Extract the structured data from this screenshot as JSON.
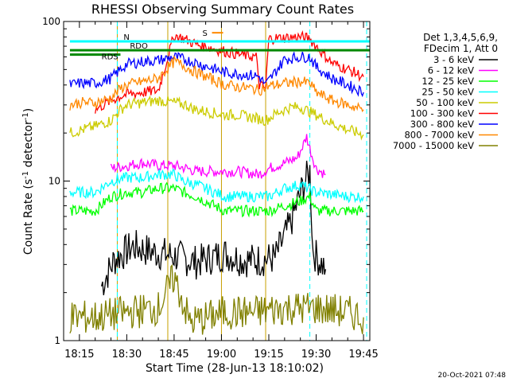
{
  "chart_data": {
    "type": "line",
    "title": "RHESSI Observing Summary Count Rates",
    "xlabel": "Start Time (28-Jun-13 18:10:02)",
    "ylabel": "Count Rate (s",
    "ylabel_sup": "-1",
    "ylabel_tail": " detector",
    "ylabel_end": ")",
    "y_scale": "log",
    "ylim": [
      1,
      100
    ],
    "y_ticks": [
      "1",
      "10",
      "100"
    ],
    "xlim": [
      "18:10",
      "19:47"
    ],
    "x_ticks": [
      "18:15",
      "18:30",
      "18:45",
      "19:00",
      "19:15",
      "19:30",
      "19:45"
    ],
    "grid": false,
    "legend": {
      "placement": "right",
      "header": [
        "Det 1,3,4,5,6,9,",
        "FDecim 1, Att 0"
      ],
      "entries": [
        {
          "label": "3 - 6 keV",
          "color": "#000000"
        },
        {
          "label": "6 - 12 keV",
          "color": "#ff00ff"
        },
        {
          "label": "12 - 25 keV",
          "color": "#00ff00"
        },
        {
          "label": "25 - 50 keV",
          "color": "#00ffff"
        },
        {
          "label": "50 - 100 keV",
          "color": "#cccc00"
        },
        {
          "label": "100 - 300 keV",
          "color": "#ff0000"
        },
        {
          "label": "300 - 800 keV",
          "color": "#0000ff"
        },
        {
          "label": "800 - 7000 keV",
          "color": "#ff8800"
        },
        {
          "label": "7000 - 15000 keV",
          "color": "#808000"
        }
      ]
    },
    "series": [
      {
        "name": "3 - 6 keV",
        "color": "#000000",
        "points": [
          [
            "18:22",
            2.2
          ],
          [
            "18:26",
            3.2
          ],
          [
            "18:32",
            3.9
          ],
          [
            "18:38",
            3.6
          ],
          [
            "18:45",
            3.4
          ],
          [
            "18:52",
            3.1
          ],
          [
            "19:01",
            3.5
          ],
          [
            "19:07",
            3.2
          ],
          [
            "19:12",
            3.2
          ],
          [
            "19:17",
            3.3
          ],
          [
            "19:22",
            5.5
          ],
          [
            "19:26",
            9.5
          ],
          [
            "19:28",
            11.5
          ],
          [
            "19:29",
            3.6
          ],
          [
            "19:33",
            2.8
          ]
        ]
      },
      {
        "name": "6 - 12 keV",
        "color": "#ff00ff",
        "points": [
          [
            "18:25",
            12
          ],
          [
            "18:30",
            12.5
          ],
          [
            "18:35",
            13
          ],
          [
            "18:40",
            12.5
          ],
          [
            "18:45",
            12.5
          ],
          [
            "18:49",
            12
          ],
          [
            "18:52",
            11.5
          ],
          [
            "19:01",
            11.5
          ],
          [
            "19:05",
            11.5
          ],
          [
            "19:12",
            11
          ],
          [
            "19:15",
            12
          ],
          [
            "19:20",
            13
          ],
          [
            "19:24",
            14
          ],
          [
            "19:26",
            17
          ],
          [
            "19:27",
            19
          ],
          [
            "19:28",
            16
          ],
          [
            "19:30",
            12
          ],
          [
            "19:33",
            11
          ]
        ]
      },
      {
        "name": "12 - 25 keV",
        "color": "#00ff00",
        "points": [
          [
            "18:12",
            6.5
          ],
          [
            "18:15",
            6.5
          ],
          [
            "18:20",
            6.5
          ],
          [
            "18:25",
            8
          ],
          [
            "18:30",
            8.5
          ],
          [
            "18:35",
            8.5
          ],
          [
            "18:40",
            9
          ],
          [
            "18:45",
            9
          ],
          [
            "18:48",
            8.5
          ],
          [
            "18:52",
            8
          ],
          [
            "19:01",
            6.5
          ],
          [
            "19:05",
            6.5
          ],
          [
            "19:10",
            6.5
          ],
          [
            "19:15",
            6.5
          ],
          [
            "19:20",
            7
          ],
          [
            "19:25",
            7.5
          ],
          [
            "19:28",
            8
          ],
          [
            "19:30",
            6.5
          ],
          [
            "19:40",
            6.5
          ],
          [
            "19:45",
            6.5
          ]
        ]
      },
      {
        "name": "25 - 50 keV",
        "color": "#00ffff",
        "points": [
          [
            "18:12",
            8.5
          ],
          [
            "18:15",
            8.5
          ],
          [
            "18:20",
            8.5
          ],
          [
            "18:25",
            10
          ],
          [
            "18:30",
            10.5
          ],
          [
            "18:35",
            10.5
          ],
          [
            "18:40",
            11
          ],
          [
            "18:45",
            11
          ],
          [
            "18:48",
            10
          ],
          [
            "18:52",
            9.5
          ],
          [
            "19:01",
            8
          ],
          [
            "19:05",
            8
          ],
          [
            "19:10",
            8
          ],
          [
            "19:15",
            8
          ],
          [
            "19:20",
            9
          ],
          [
            "19:25",
            9.5
          ],
          [
            "19:30",
            8.5
          ],
          [
            "19:40",
            8
          ],
          [
            "19:45",
            8
          ]
        ]
      },
      {
        "name": "50 - 100 keV",
        "color": "#cccc00",
        "points": [
          [
            "18:12",
            20
          ],
          [
            "18:16",
            21
          ],
          [
            "18:20",
            22
          ],
          [
            "18:25",
            24
          ],
          [
            "18:28",
            28
          ],
          [
            "18:30",
            30
          ],
          [
            "18:35",
            31
          ],
          [
            "18:40",
            32
          ],
          [
            "18:45",
            31
          ],
          [
            "18:49",
            30
          ],
          [
            "18:50",
            29
          ],
          [
            "18:52",
            28
          ],
          [
            "19:01",
            26
          ],
          [
            "19:05",
            26
          ],
          [
            "19:10",
            25
          ],
          [
            "19:14",
            24
          ],
          [
            "19:18",
            27
          ],
          [
            "19:22",
            29
          ],
          [
            "19:25",
            29
          ],
          [
            "19:30",
            26
          ],
          [
            "19:35",
            23
          ],
          [
            "19:40",
            21
          ],
          [
            "19:45",
            19.5
          ]
        ]
      },
      {
        "name": "100 - 300 keV",
        "color": "#ff0000",
        "points": [
          [
            "18:20",
            28
          ],
          [
            "18:25",
            32
          ],
          [
            "18:28",
            34
          ],
          [
            "18:30",
            35
          ],
          [
            "18:35",
            36
          ],
          [
            "18:40",
            37
          ],
          [
            "18:45",
            82
          ],
          [
            "18:48",
            78
          ],
          [
            "18:52",
            72
          ],
          [
            "18:57",
            68
          ],
          [
            "19:01",
            65
          ],
          [
            "19:06",
            62
          ],
          [
            "19:11",
            60
          ],
          [
            "19:12",
            40
          ],
          [
            "19:14",
            38
          ],
          [
            "19:15",
            78
          ],
          [
            "19:20",
            79
          ],
          [
            "19:25",
            80
          ],
          [
            "19:28",
            78
          ],
          [
            "19:30",
            70
          ],
          [
            "19:35",
            55
          ],
          [
            "19:40",
            50
          ],
          [
            "19:45",
            45
          ]
        ]
      },
      {
        "name": "300 - 800 keV",
        "color": "#0000ff",
        "points": [
          [
            "18:12",
            40
          ],
          [
            "18:15",
            41
          ],
          [
            "18:20",
            41
          ],
          [
            "18:25",
            44
          ],
          [
            "18:28",
            50
          ],
          [
            "18:30",
            54
          ],
          [
            "18:35",
            56
          ],
          [
            "18:40",
            57
          ],
          [
            "18:45",
            60
          ],
          [
            "18:48",
            58
          ],
          [
            "18:52",
            55
          ],
          [
            "19:01",
            48
          ],
          [
            "19:05",
            47
          ],
          [
            "19:10",
            46
          ],
          [
            "19:12",
            45
          ],
          [
            "19:14",
            40
          ],
          [
            "19:20",
            58
          ],
          [
            "19:25",
            60
          ],
          [
            "19:28",
            60
          ],
          [
            "19:30",
            52
          ],
          [
            "19:35",
            44
          ],
          [
            "19:40",
            40
          ],
          [
            "19:45",
            36
          ]
        ]
      },
      {
        "name": "800 - 7000 keV",
        "color": "#ff8800",
        "points": [
          [
            "18:12",
            30
          ],
          [
            "18:15",
            31
          ],
          [
            "18:20",
            31
          ],
          [
            "18:25",
            33
          ],
          [
            "18:28",
            38
          ],
          [
            "18:30",
            40
          ],
          [
            "18:35",
            42
          ],
          [
            "18:40",
            44
          ],
          [
            "18:45",
            56
          ],
          [
            "18:48",
            53
          ],
          [
            "18:52",
            48
          ],
          [
            "19:01",
            40
          ],
          [
            "19:05",
            39
          ],
          [
            "19:10",
            38
          ],
          [
            "19:12",
            37
          ],
          [
            "19:14",
            39
          ],
          [
            "19:20",
            41
          ],
          [
            "19:25",
            42
          ],
          [
            "19:28",
            41
          ],
          [
            "19:30",
            36
          ],
          [
            "19:35",
            32
          ],
          [
            "19:40",
            30
          ],
          [
            "19:45",
            28
          ]
        ]
      },
      {
        "name": "7000 - 15000 keV",
        "color": "#808000",
        "points": [
          [
            "18:12",
            1.4
          ],
          [
            "18:20",
            1.4
          ],
          [
            "18:30",
            1.5
          ],
          [
            "18:40",
            1.6
          ],
          [
            "18:45",
            2.5
          ],
          [
            "18:50",
            1.3
          ],
          [
            "19:01",
            1.5
          ],
          [
            "19:10",
            1.5
          ],
          [
            "19:20",
            1.6
          ],
          [
            "19:30",
            1.6
          ],
          [
            "19:40",
            1.5
          ],
          [
            "19:45",
            1.4
          ]
        ]
      }
    ],
    "annotations": {
      "N": {
        "label": "N",
        "color": "#00ffff",
        "value": 75,
        "start": "18:12",
        "end": "19:47"
      },
      "RDO": {
        "label": "RDO",
        "color": "#008800",
        "value": 66,
        "start": "18:12",
        "end": "19:47"
      },
      "RDS": {
        "label": "RDS",
        "color": "#008800",
        "value": 62,
        "start": "18:12",
        "end": "18:28"
      },
      "S": {
        "label": "S",
        "color": "#ff8800",
        "time": "18:57"
      }
    },
    "night_intervals": [
      [
        "18:27",
        "18:43"
      ],
      [
        "19:00",
        "19:14"
      ]
    ],
    "eclipse_markers": [
      "18:27",
      "19:28",
      "19:46"
    ]
  },
  "footer": {
    "date_stamp": "20-Oct-2021 07:48"
  }
}
